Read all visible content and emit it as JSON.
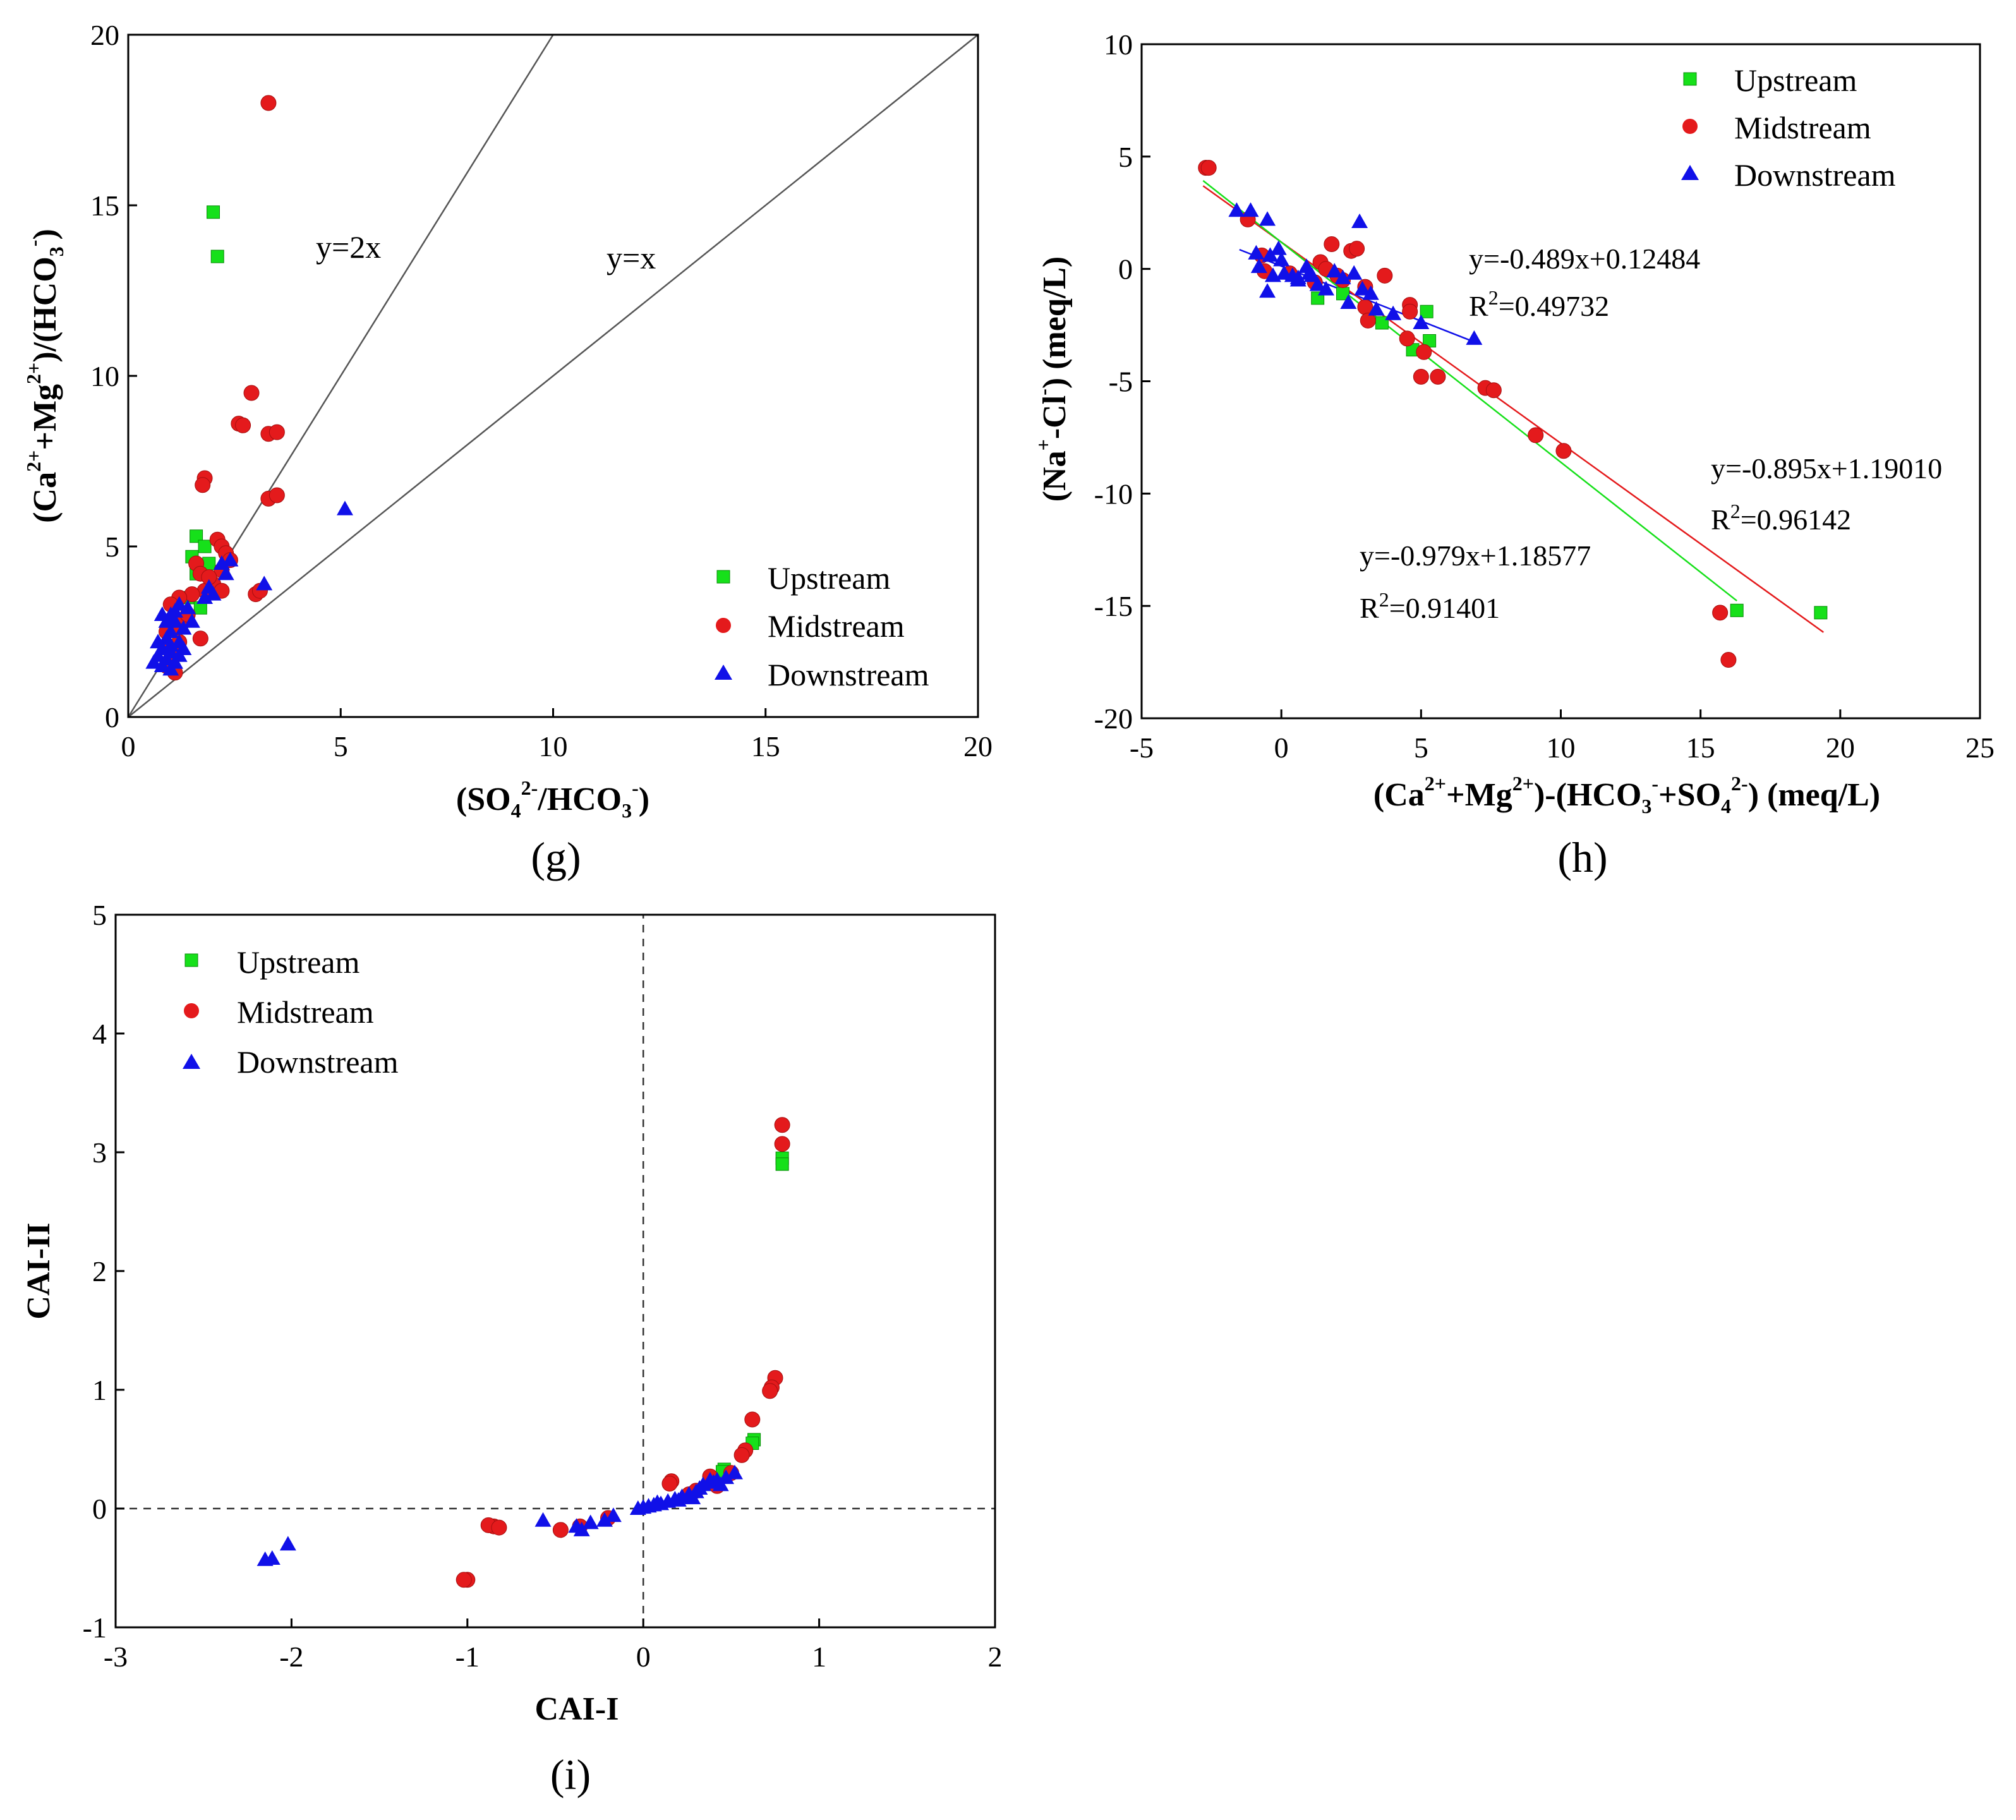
{
  "colors": {
    "upstream": "#16e01a",
    "midstream": "#e41a1c",
    "downstream": "#1010e8"
  },
  "chart_data": [
    {
      "id": "g",
      "type": "scatter",
      "panel_label": "(g)",
      "xlabel": "(SO42-/HCO3-)",
      "ylabel": "(Ca2++Mg2+)/(HCO3-)",
      "xlim": [
        0,
        20
      ],
      "ylim": [
        0,
        20
      ],
      "xticks": [
        0,
        5,
        10,
        15,
        20
      ],
      "yticks": [
        0,
        5,
        10,
        15,
        20
      ],
      "legend_position": "bottom-right",
      "reference_lines": [
        {
          "label": "y=2x",
          "slope": 2
        },
        {
          "label": "y=x",
          "slope": 1
        }
      ],
      "series": [
        {
          "name": "Upstream",
          "marker": "square",
          "color": "upstream",
          "points": [
            [
              2.0,
              14.8
            ],
            [
              2.1,
              13.5
            ],
            [
              1.6,
              5.3
            ],
            [
              1.5,
              4.7
            ],
            [
              1.8,
              5.0
            ],
            [
              1.6,
              4.2
            ],
            [
              1.7,
              3.2
            ],
            [
              1.4,
              3.5
            ],
            [
              1.9,
              4.5
            ]
          ]
        },
        {
          "name": "Midstream",
          "marker": "circle",
          "color": "midstream",
          "points": [
            [
              3.3,
              18.0
            ],
            [
              2.9,
              9.5
            ],
            [
              2.6,
              8.6
            ],
            [
              2.7,
              8.55
            ],
            [
              3.3,
              8.3
            ],
            [
              3.5,
              8.35
            ],
            [
              1.8,
              7.0
            ],
            [
              1.75,
              6.8
            ],
            [
              3.3,
              6.4
            ],
            [
              3.5,
              6.5
            ],
            [
              2.1,
              5.2
            ],
            [
              2.2,
              5.0
            ],
            [
              2.3,
              4.8
            ],
            [
              1.6,
              4.5
            ],
            [
              1.7,
              4.2
            ],
            [
              2.2,
              4.3
            ],
            [
              2.0,
              3.9
            ],
            [
              1.8,
              3.7
            ],
            [
              1.5,
              3.6
            ],
            [
              2.2,
              3.7
            ],
            [
              3.0,
              3.6
            ],
            [
              3.1,
              3.7
            ],
            [
              1.7,
              2.3
            ],
            [
              1.2,
              3.5
            ],
            [
              1.0,
              3.3
            ],
            [
              1.3,
              2.8
            ],
            [
              1.1,
              2.6
            ],
            [
              0.9,
              2.5
            ],
            [
              1.0,
              2.0
            ],
            [
              1.0,
              1.7
            ],
            [
              1.1,
              1.3
            ],
            [
              0.9,
              1.5
            ],
            [
              1.2,
              2.2
            ],
            [
              1.4,
              3.0
            ],
            [
              2.4,
              4.6
            ],
            [
              1.9,
              4.1
            ]
          ]
        },
        {
          "name": "Downstream",
          "marker": "triangle",
          "color": "downstream",
          "points": [
            [
              5.1,
              6.1
            ],
            [
              3.2,
              3.9
            ],
            [
              2.4,
              4.6
            ],
            [
              2.2,
              4.5
            ],
            [
              2.3,
              4.2
            ],
            [
              2.0,
              3.6
            ],
            [
              1.9,
              3.8
            ],
            [
              1.8,
              3.5
            ],
            [
              1.2,
              3.3
            ],
            [
              1.1,
              3.1
            ],
            [
              1.0,
              3.0
            ],
            [
              0.8,
              3.0
            ],
            [
              1.1,
              2.8
            ],
            [
              1.3,
              2.6
            ],
            [
              1.0,
              2.5
            ],
            [
              0.9,
              2.3
            ],
            [
              1.2,
              2.2
            ],
            [
              0.8,
              2.0
            ],
            [
              1.0,
              1.9
            ],
            [
              0.7,
              1.8
            ],
            [
              0.9,
              1.7
            ],
            [
              1.1,
              1.6
            ],
            [
              0.6,
              1.6
            ],
            [
              0.8,
              1.5
            ],
            [
              1.0,
              1.4
            ],
            [
              1.3,
              2.0
            ],
            [
              1.5,
              2.8
            ],
            [
              1.4,
              3.2
            ],
            [
              0.9,
              2.8
            ],
            [
              1.2,
              1.8
            ],
            [
              0.7,
              2.2
            ],
            [
              1.0,
              2.1
            ]
          ]
        }
      ]
    },
    {
      "id": "h",
      "type": "scatter",
      "panel_label": "(h)",
      "xlabel": "(Ca2++Mg2+)-(HCO3-+SO42-) (meq/L)",
      "ylabel": "(Na+-Cl-) (meq/L)",
      "xlim": [
        -5,
        25
      ],
      "ylim": [
        -20,
        10
      ],
      "xticks": [
        -5,
        0,
        5,
        10,
        15,
        20,
        25
      ],
      "yticks": [
        -20,
        -15,
        -10,
        -5,
        0,
        5,
        10
      ],
      "legend_position": "top-right",
      "fits": [
        {
          "series": "Downstream",
          "equation": "y=-0.489x+0.12484",
          "r2_prefix": "R",
          "r2_sup": "2",
          "r2_value": "=0.49732",
          "slope": -0.489,
          "intercept": 0.12484,
          "x_range": [
            -1.5,
            7.0
          ]
        },
        {
          "series": "Midstream",
          "equation": "y=-0.895x+1.19010",
          "r2_prefix": "R",
          "r2_sup": "2",
          "r2_value": "=0.96142",
          "slope": -0.895,
          "intercept": 1.1901,
          "x_range": [
            -2.8,
            19.4
          ]
        },
        {
          "series": "Upstream",
          "equation": "y=-0.979x+1.18577",
          "r2_prefix": "R",
          "r2_sup": "2",
          "r2_value": "=0.91401",
          "slope": -0.979,
          "intercept": 1.18577,
          "x_range": [
            -2.8,
            16.3
          ]
        }
      ],
      "series": [
        {
          "name": "Upstream",
          "marker": "square",
          "color": "upstream",
          "points": [
            [
              16.3,
              -15.2
            ],
            [
              19.3,
              -15.3
            ],
            [
              5.2,
              -1.9
            ],
            [
              5.3,
              -3.2
            ],
            [
              4.7,
              -3.6
            ],
            [
              1.3,
              -1.3
            ],
            [
              2.2,
              -1.1
            ],
            [
              3.6,
              -2.4
            ]
          ]
        },
        {
          "name": "Midstream",
          "marker": "circle",
          "color": "midstream",
          "points": [
            [
              -2.7,
              4.5
            ],
            [
              -2.6,
              4.5
            ],
            [
              -1.2,
              2.2
            ],
            [
              -0.7,
              0.6
            ],
            [
              -0.6,
              -0.1
            ],
            [
              0.3,
              -0.2
            ],
            [
              1.4,
              0.3
            ],
            [
              1.6,
              0.0
            ],
            [
              1.8,
              1.1
            ],
            [
              2.2,
              -0.5
            ],
            [
              2.5,
              0.8
            ],
            [
              2.7,
              0.9
            ],
            [
              3.0,
              -0.8
            ],
            [
              3.7,
              -0.3
            ],
            [
              3.0,
              -1.7
            ],
            [
              3.1,
              -2.3
            ],
            [
              4.6,
              -1.6
            ],
            [
              4.6,
              -1.9
            ],
            [
              4.5,
              -3.1
            ],
            [
              5.1,
              -3.7
            ],
            [
              5.0,
              -4.8
            ],
            [
              5.6,
              -4.8
            ],
            [
              7.3,
              -5.3
            ],
            [
              7.6,
              -5.4
            ],
            [
              9.1,
              -7.4
            ],
            [
              10.1,
              -8.1
            ],
            [
              15.7,
              -15.3
            ],
            [
              16.0,
              -17.4
            ],
            [
              2.0,
              -0.3
            ],
            [
              1.2,
              -0.6
            ]
          ]
        },
        {
          "name": "Downstream",
          "marker": "triangle",
          "color": "downstream",
          "points": [
            [
              -1.6,
              2.6
            ],
            [
              -1.1,
              2.6
            ],
            [
              -0.5,
              2.2
            ],
            [
              -0.9,
              0.7
            ],
            [
              -0.8,
              0.1
            ],
            [
              -0.4,
              0.6
            ],
            [
              -0.1,
              0.9
            ],
            [
              0.0,
              0.4
            ],
            [
              -0.3,
              -0.3
            ],
            [
              0.1,
              -0.2
            ],
            [
              0.4,
              -0.3
            ],
            [
              0.6,
              -0.4
            ],
            [
              0.9,
              0.1
            ],
            [
              1.1,
              -0.3
            ],
            [
              1.3,
              -0.7
            ],
            [
              1.6,
              -0.9
            ],
            [
              1.9,
              -0.1
            ],
            [
              2.2,
              -0.4
            ],
            [
              2.6,
              -0.2
            ],
            [
              2.8,
              2.1
            ],
            [
              2.9,
              -0.9
            ],
            [
              3.2,
              -1.1
            ],
            [
              3.4,
              -1.8
            ],
            [
              4.0,
              -2.0
            ],
            [
              5.0,
              -2.4
            ],
            [
              6.9,
              -3.1
            ],
            [
              -0.5,
              -1.0
            ],
            [
              0.6,
              -0.5
            ],
            [
              2.4,
              -1.5
            ],
            [
              1.0,
              -0.2
            ]
          ]
        }
      ]
    },
    {
      "id": "i",
      "type": "scatter",
      "panel_label": "(i)",
      "xlabel": "CAI-I",
      "ylabel": "CAI-II",
      "xlim": [
        -3,
        2
      ],
      "ylim": [
        -1,
        5
      ],
      "xticks": [
        -3,
        -2,
        -1,
        0,
        1,
        2
      ],
      "yticks": [
        -1,
        0,
        1,
        2,
        3,
        4,
        5
      ],
      "legend_position": "top-left",
      "zero_lines": true,
      "series": [
        {
          "name": "Upstream",
          "marker": "square",
          "color": "upstream",
          "points": [
            [
              0.79,
              2.95
            ],
            [
              0.79,
              2.9
            ],
            [
              0.63,
              0.58
            ],
            [
              0.62,
              0.55
            ],
            [
              0.46,
              0.33
            ],
            [
              0.45,
              0.31
            ]
          ]
        },
        {
          "name": "Midstream",
          "marker": "circle",
          "color": "midstream",
          "points": [
            [
              0.79,
              3.23
            ],
            [
              0.79,
              3.07
            ],
            [
              0.75,
              1.1
            ],
            [
              0.73,
              1.02
            ],
            [
              0.72,
              0.99
            ],
            [
              0.62,
              0.75
            ],
            [
              0.58,
              0.49
            ],
            [
              0.56,
              0.45
            ],
            [
              0.38,
              0.27
            ],
            [
              0.16,
              0.23
            ],
            [
              0.15,
              0.21
            ],
            [
              0.42,
              0.19
            ],
            [
              0.26,
              0.12
            ],
            [
              -0.85,
              -0.15
            ],
            [
              -0.88,
              -0.14
            ],
            [
              -0.82,
              -0.16
            ],
            [
              -1.0,
              -0.6
            ],
            [
              -1.02,
              -0.6
            ],
            [
              -0.47,
              -0.18
            ],
            [
              -0.36,
              -0.15
            ],
            [
              -0.2,
              -0.08
            ],
            [
              0.3,
              0.15
            ],
            [
              0.5,
              0.3
            ]
          ]
        },
        {
          "name": "Downstream",
          "marker": "triangle",
          "color": "downstream",
          "points": [
            [
              -2.15,
              -0.43
            ],
            [
              -2.11,
              -0.42
            ],
            [
              -2.02,
              -0.3
            ],
            [
              -0.57,
              -0.1
            ],
            [
              -0.38,
              -0.15
            ],
            [
              -0.35,
              -0.18
            ],
            [
              -0.3,
              -0.12
            ],
            [
              -0.22,
              -0.1
            ],
            [
              -0.17,
              -0.06
            ],
            [
              -0.03,
              0.0
            ],
            [
              0.0,
              0.01
            ],
            [
              0.03,
              0.02
            ],
            [
              0.06,
              0.03
            ],
            [
              0.1,
              0.04
            ],
            [
              0.14,
              0.06
            ],
            [
              0.18,
              0.08
            ],
            [
              0.22,
              0.1
            ],
            [
              0.26,
              0.12
            ],
            [
              0.3,
              0.14
            ],
            [
              0.34,
              0.2
            ],
            [
              0.38,
              0.24
            ],
            [
              0.42,
              0.24
            ],
            [
              0.47,
              0.26
            ],
            [
              0.52,
              0.3
            ],
            [
              0.28,
              0.09
            ],
            [
              0.32,
              0.17
            ],
            [
              0.4,
              0.22
            ],
            [
              0.44,
              0.2
            ],
            [
              0.08,
              0.05
            ],
            [
              0.2,
              0.07
            ]
          ]
        }
      ]
    }
  ]
}
